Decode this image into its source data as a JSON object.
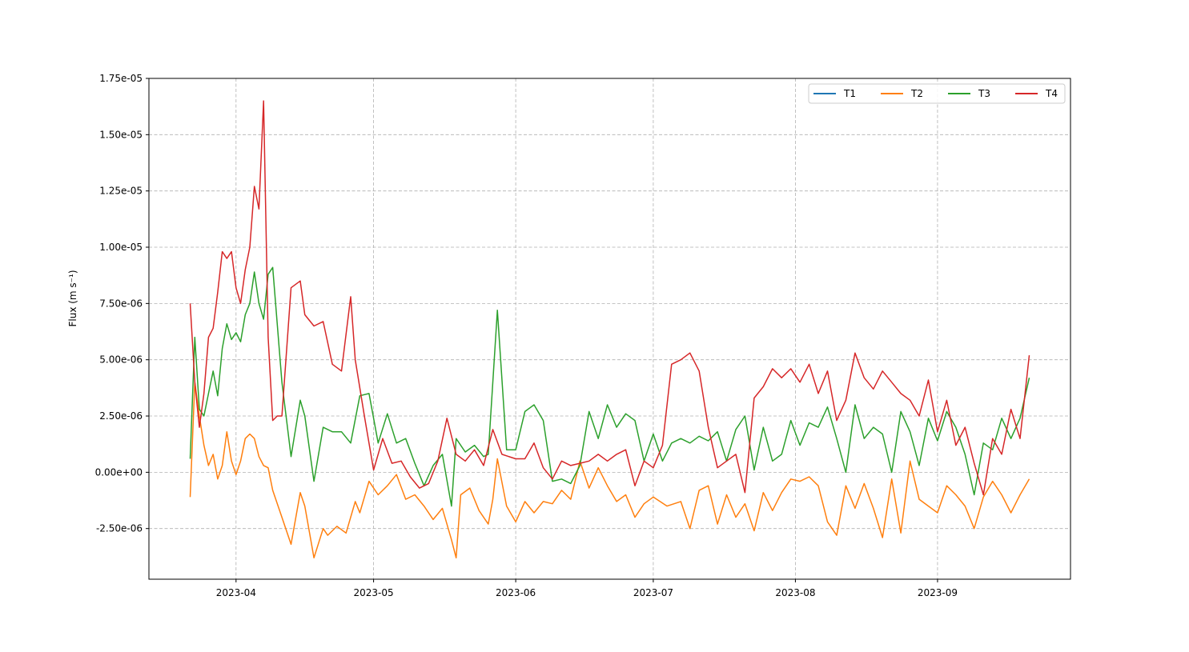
{
  "chart_data": {
    "type": "line",
    "title": "",
    "xlabel": "",
    "ylabel": "Flux (m s⁻¹)",
    "x_type": "date",
    "xlim": [
      "2023-03-13",
      "2023-09-30"
    ],
    "ylim": [
      -4.75e-06,
      1.75e-05
    ],
    "grid": true,
    "legend": {
      "placement": "top-right",
      "columns": 4
    },
    "x_ticks": [
      "2023-04-01",
      "2023-05-01",
      "2023-06-01",
      "2023-07-01",
      "2023-08-01",
      "2023-09-01"
    ],
    "x_tick_labels": [
      "2023-04",
      "2023-05",
      "2023-06",
      "2023-07",
      "2023-08",
      "2023-09"
    ],
    "y_ticks": [
      -2.5e-06,
      0,
      2.5e-06,
      5e-06,
      7.5e-06,
      1e-05,
      1.25e-05,
      1.5e-05,
      1.75e-05
    ],
    "y_tick_labels": [
      "-2.50e-06",
      "0.00e+00",
      "2.50e-06",
      "5.00e-06",
      "7.50e-06",
      "1.00e-05",
      "1.25e-05",
      "1.50e-05",
      "1.75e-05"
    ],
    "series": [
      {
        "name": "T1",
        "color": "#1f77b4",
        "x": [],
        "y": []
      },
      {
        "name": "T2",
        "color": "#ff7f0e",
        "x": [
          "2023-03-22",
          "2023-03-23",
          "2023-03-24",
          "2023-03-25",
          "2023-03-26",
          "2023-03-27",
          "2023-03-28",
          "2023-03-29",
          "2023-03-30",
          "2023-03-31",
          "2023-04-01",
          "2023-04-02",
          "2023-04-03",
          "2023-04-04",
          "2023-04-05",
          "2023-04-06",
          "2023-04-07",
          "2023-04-08",
          "2023-04-09",
          "2023-04-11",
          "2023-04-13",
          "2023-04-15",
          "2023-04-16",
          "2023-04-18",
          "2023-04-20",
          "2023-04-21",
          "2023-04-23",
          "2023-04-25",
          "2023-04-27",
          "2023-04-28",
          "2023-04-30",
          "2023-05-02",
          "2023-05-04",
          "2023-05-06",
          "2023-05-08",
          "2023-05-10",
          "2023-05-12",
          "2023-05-14",
          "2023-05-16",
          "2023-05-18",
          "2023-05-19",
          "2023-05-20",
          "2023-05-22",
          "2023-05-24",
          "2023-05-26",
          "2023-05-27",
          "2023-05-28",
          "2023-05-30",
          "2023-06-01",
          "2023-06-03",
          "2023-06-05",
          "2023-06-07",
          "2023-06-09",
          "2023-06-11",
          "2023-06-13",
          "2023-06-15",
          "2023-06-17",
          "2023-06-19",
          "2023-06-21",
          "2023-06-23",
          "2023-06-25",
          "2023-06-27",
          "2023-06-29",
          "2023-07-01",
          "2023-07-04",
          "2023-07-07",
          "2023-07-09",
          "2023-07-11",
          "2023-07-13",
          "2023-07-15",
          "2023-07-17",
          "2023-07-19",
          "2023-07-21",
          "2023-07-23",
          "2023-07-25",
          "2023-07-27",
          "2023-07-29",
          "2023-07-31",
          "2023-08-02",
          "2023-08-04",
          "2023-08-06",
          "2023-08-08",
          "2023-08-10",
          "2023-08-12",
          "2023-08-14",
          "2023-08-16",
          "2023-08-18",
          "2023-08-20",
          "2023-08-22",
          "2023-08-24",
          "2023-08-26",
          "2023-08-28",
          "2023-08-30",
          "2023-09-01",
          "2023-09-03",
          "2023-09-05",
          "2023-09-07",
          "2023-09-09",
          "2023-09-11",
          "2023-09-13",
          "2023-09-15",
          "2023-09-17",
          "2023-09-19",
          "2023-09-21"
        ],
        "y": [
          -1.1e-06,
          4e-06,
          2.5e-06,
          1.2e-06,
          3e-07,
          8e-07,
          -3e-07,
          3e-07,
          1.8e-06,
          5e-07,
          -1e-07,
          5e-07,
          1.5e-06,
          1.7e-06,
          1.5e-06,
          7e-07,
          3e-07,
          2e-07,
          -8e-07,
          -2e-06,
          -3.2e-06,
          -9e-07,
          -1.5e-06,
          -3.8e-06,
          -2.5e-06,
          -2.8e-06,
          -2.4e-06,
          -2.7e-06,
          -1.3e-06,
          -1.8e-06,
          -4e-07,
          -1e-06,
          -6e-07,
          -1e-07,
          -1.2e-06,
          -1e-06,
          -1.5e-06,
          -2.1e-06,
          -1.6e-06,
          -3e-06,
          -3.8e-06,
          -1e-06,
          -7e-07,
          -1.7e-06,
          -2.3e-06,
          -1.2e-06,
          6e-07,
          -1.5e-06,
          -2.2e-06,
          -1.3e-06,
          -1.8e-06,
          -1.3e-06,
          -1.4e-06,
          -8e-07,
          -1.2e-06,
          5e-07,
          -7e-07,
          2e-07,
          -6e-07,
          -1.3e-06,
          -1e-06,
          -2e-06,
          -1.4e-06,
          -1.1e-06,
          -1.5e-06,
          -1.3e-06,
          -2.5e-06,
          -8e-07,
          -6e-07,
          -2.3e-06,
          -1e-06,
          -2e-06,
          -1.4e-06,
          -2.6e-06,
          -9e-07,
          -1.7e-06,
          -9e-07,
          -3e-07,
          -4e-07,
          -2e-07,
          -6e-07,
          -2.2e-06,
          -2.8e-06,
          -6e-07,
          -1.6e-06,
          -5e-07,
          -1.6e-06,
          -2.9e-06,
          -3e-07,
          -2.7e-06,
          5e-07,
          -1.2e-06,
          -1.5e-06,
          -1.8e-06,
          -6e-07,
          -1e-06,
          -1.5e-06,
          -2.5e-06,
          -1.1e-06,
          -4e-07,
          -1e-06,
          -1.8e-06,
          -1e-06,
          -3e-07
        ]
      },
      {
        "name": "T3",
        "color": "#2ca02c",
        "x": [
          "2023-03-22",
          "2023-03-23",
          "2023-03-24",
          "2023-03-25",
          "2023-03-26",
          "2023-03-27",
          "2023-03-28",
          "2023-03-29",
          "2023-03-30",
          "2023-03-31",
          "2023-04-01",
          "2023-04-02",
          "2023-04-03",
          "2023-04-04",
          "2023-04-05",
          "2023-04-06",
          "2023-04-07",
          "2023-04-08",
          "2023-04-09",
          "2023-04-11",
          "2023-04-13",
          "2023-04-15",
          "2023-04-16",
          "2023-04-18",
          "2023-04-20",
          "2023-04-22",
          "2023-04-24",
          "2023-04-26",
          "2023-04-28",
          "2023-04-30",
          "2023-05-02",
          "2023-05-04",
          "2023-05-06",
          "2023-05-08",
          "2023-05-10",
          "2023-05-12",
          "2023-05-14",
          "2023-05-16",
          "2023-05-18",
          "2023-05-19",
          "2023-05-21",
          "2023-05-23",
          "2023-05-25",
          "2023-05-26",
          "2023-05-28",
          "2023-05-30",
          "2023-06-01",
          "2023-06-03",
          "2023-06-05",
          "2023-06-07",
          "2023-06-09",
          "2023-06-11",
          "2023-06-13",
          "2023-06-15",
          "2023-06-17",
          "2023-06-19",
          "2023-06-21",
          "2023-06-23",
          "2023-06-25",
          "2023-06-27",
          "2023-06-29",
          "2023-07-01",
          "2023-07-03",
          "2023-07-05",
          "2023-07-07",
          "2023-07-09",
          "2023-07-11",
          "2023-07-13",
          "2023-07-15",
          "2023-07-17",
          "2023-07-19",
          "2023-07-21",
          "2023-07-23",
          "2023-07-25",
          "2023-07-27",
          "2023-07-29",
          "2023-07-31",
          "2023-08-02",
          "2023-08-04",
          "2023-08-06",
          "2023-08-08",
          "2023-08-10",
          "2023-08-12",
          "2023-08-14",
          "2023-08-16",
          "2023-08-18",
          "2023-08-20",
          "2023-08-22",
          "2023-08-24",
          "2023-08-26",
          "2023-08-28",
          "2023-08-30",
          "2023-09-01",
          "2023-09-03",
          "2023-09-05",
          "2023-09-07",
          "2023-09-09",
          "2023-09-11",
          "2023-09-13",
          "2023-09-15",
          "2023-09-17",
          "2023-09-19",
          "2023-09-21"
        ],
        "y": [
          6e-07,
          6e-06,
          2.8e-06,
          2.5e-06,
          3.5e-06,
          4.5e-06,
          3.4e-06,
          5.5e-06,
          6.6e-06,
          5.9e-06,
          6.2e-06,
          5.8e-06,
          7e-06,
          7.5e-06,
          8.9e-06,
          7.5e-06,
          6.8e-06,
          8.8e-06,
          9.1e-06,
          4e-06,
          7e-07,
          3.2e-06,
          2.5e-06,
          -4e-07,
          2e-06,
          1.8e-06,
          1.8e-06,
          1.3e-06,
          3.4e-06,
          3.5e-06,
          1.3e-06,
          2.6e-06,
          1.3e-06,
          1.5e-06,
          4e-07,
          -6e-07,
          3e-07,
          8e-07,
          -1.5e-06,
          1.5e-06,
          9e-07,
          1.2e-06,
          7e-07,
          8e-07,
          7.2e-06,
          1e-06,
          1e-06,
          2.7e-06,
          3e-06,
          2.3e-06,
          -4e-07,
          -3e-07,
          -5e-07,
          3e-07,
          2.7e-06,
          1.5e-06,
          3e-06,
          2e-06,
          2.6e-06,
          2.3e-06,
          5e-07,
          1.7e-06,
          5e-07,
          1.3e-06,
          1.5e-06,
          1.3e-06,
          1.6e-06,
          1.4e-06,
          1.8e-06,
          5e-07,
          1.9e-06,
          2.5e-06,
          1e-07,
          2e-06,
          5e-07,
          8e-07,
          2.3e-06,
          1.2e-06,
          2.2e-06,
          2e-06,
          2.9e-06,
          1.5e-06,
          0.0,
          3e-06,
          1.5e-06,
          2e-06,
          1.7e-06,
          0.0,
          2.7e-06,
          1.8e-06,
          3e-07,
          2.4e-06,
          1.4e-06,
          2.7e-06,
          2e-06,
          8e-07,
          -1e-06,
          1.3e-06,
          1e-06,
          2.4e-06,
          1.5e-06,
          2.4e-06,
          4.2e-06
        ]
      },
      {
        "name": "T4",
        "color": "#d62728",
        "x": [
          "2023-03-22",
          "2023-03-23",
          "2023-03-24",
          "2023-03-25",
          "2023-03-26",
          "2023-03-27",
          "2023-03-28",
          "2023-03-29",
          "2023-03-30",
          "2023-03-31",
          "2023-04-01",
          "2023-04-02",
          "2023-04-03",
          "2023-04-04",
          "2023-04-05",
          "2023-04-06",
          "2023-04-07",
          "2023-04-08",
          "2023-04-09",
          "2023-04-10",
          "2023-04-11",
          "2023-04-13",
          "2023-04-15",
          "2023-04-16",
          "2023-04-18",
          "2023-04-20",
          "2023-04-22",
          "2023-04-24",
          "2023-04-26",
          "2023-04-27",
          "2023-04-29",
          "2023-05-01",
          "2023-05-03",
          "2023-05-05",
          "2023-05-07",
          "2023-05-09",
          "2023-05-11",
          "2023-05-13",
          "2023-05-15",
          "2023-05-17",
          "2023-05-19",
          "2023-05-21",
          "2023-05-23",
          "2023-05-25",
          "2023-05-27",
          "2023-05-29",
          "2023-06-01",
          "2023-06-03",
          "2023-06-05",
          "2023-06-07",
          "2023-06-09",
          "2023-06-11",
          "2023-06-13",
          "2023-06-15",
          "2023-06-17",
          "2023-06-19",
          "2023-06-21",
          "2023-06-23",
          "2023-06-25",
          "2023-06-27",
          "2023-06-29",
          "2023-07-01",
          "2023-07-03",
          "2023-07-05",
          "2023-07-07",
          "2023-07-09",
          "2023-07-11",
          "2023-07-13",
          "2023-07-15",
          "2023-07-17",
          "2023-07-19",
          "2023-07-21",
          "2023-07-23",
          "2023-07-25",
          "2023-07-27",
          "2023-07-29",
          "2023-07-31",
          "2023-08-02",
          "2023-08-04",
          "2023-08-06",
          "2023-08-08",
          "2023-08-10",
          "2023-08-12",
          "2023-08-14",
          "2023-08-16",
          "2023-08-18",
          "2023-08-20",
          "2023-08-22",
          "2023-08-24",
          "2023-08-26",
          "2023-08-28",
          "2023-08-30",
          "2023-09-01",
          "2023-09-03",
          "2023-09-05",
          "2023-09-07",
          "2023-09-09",
          "2023-09-11",
          "2023-09-13",
          "2023-09-15",
          "2023-09-17",
          "2023-09-19",
          "2023-09-21"
        ],
        "y": [
          7.5e-06,
          4e-06,
          2e-06,
          3.5e-06,
          6e-06,
          6.4e-06,
          8e-06,
          9.8e-06,
          9.5e-06,
          9.8e-06,
          8.2e-06,
          7.5e-06,
          9e-06,
          1e-05,
          1.27e-05,
          1.17e-05,
          1.65e-05,
          6e-06,
          2.3e-06,
          2.5e-06,
          2.5e-06,
          8.2e-06,
          8.5e-06,
          7e-06,
          6.5e-06,
          6.7e-06,
          4.8e-06,
          4.5e-06,
          7.8e-06,
          5e-06,
          2.5e-06,
          1e-07,
          1.5e-06,
          4e-07,
          5e-07,
          -2e-07,
          -7e-07,
          -5e-07,
          5e-07,
          2.4e-06,
          8e-07,
          5e-07,
          1e-06,
          3e-07,
          1.9e-06,
          8e-07,
          6e-07,
          6e-07,
          1.3e-06,
          2e-07,
          -3e-07,
          5e-07,
          3e-07,
          4e-07,
          5e-07,
          8e-07,
          5e-07,
          8e-07,
          1e-06,
          -6e-07,
          5e-07,
          2e-07,
          1.2e-06,
          4.8e-06,
          5e-06,
          5.3e-06,
          4.5e-06,
          2e-06,
          2e-07,
          5e-07,
          8e-07,
          -9e-07,
          3.3e-06,
          3.8e-06,
          4.6e-06,
          4.2e-06,
          4.6e-06,
          4e-06,
          4.8e-06,
          3.5e-06,
          4.5e-06,
          2.3e-06,
          3.2e-06,
          5.3e-06,
          4.2e-06,
          3.7e-06,
          4.5e-06,
          4e-06,
          3.5e-06,
          3.2e-06,
          2.5e-06,
          4.1e-06,
          1.8e-06,
          3.2e-06,
          1.2e-06,
          2e-06,
          4e-07,
          -1e-06,
          1.5e-06,
          8e-07,
          2.8e-06,
          1.5e-06,
          5.2e-06
        ]
      }
    ]
  }
}
